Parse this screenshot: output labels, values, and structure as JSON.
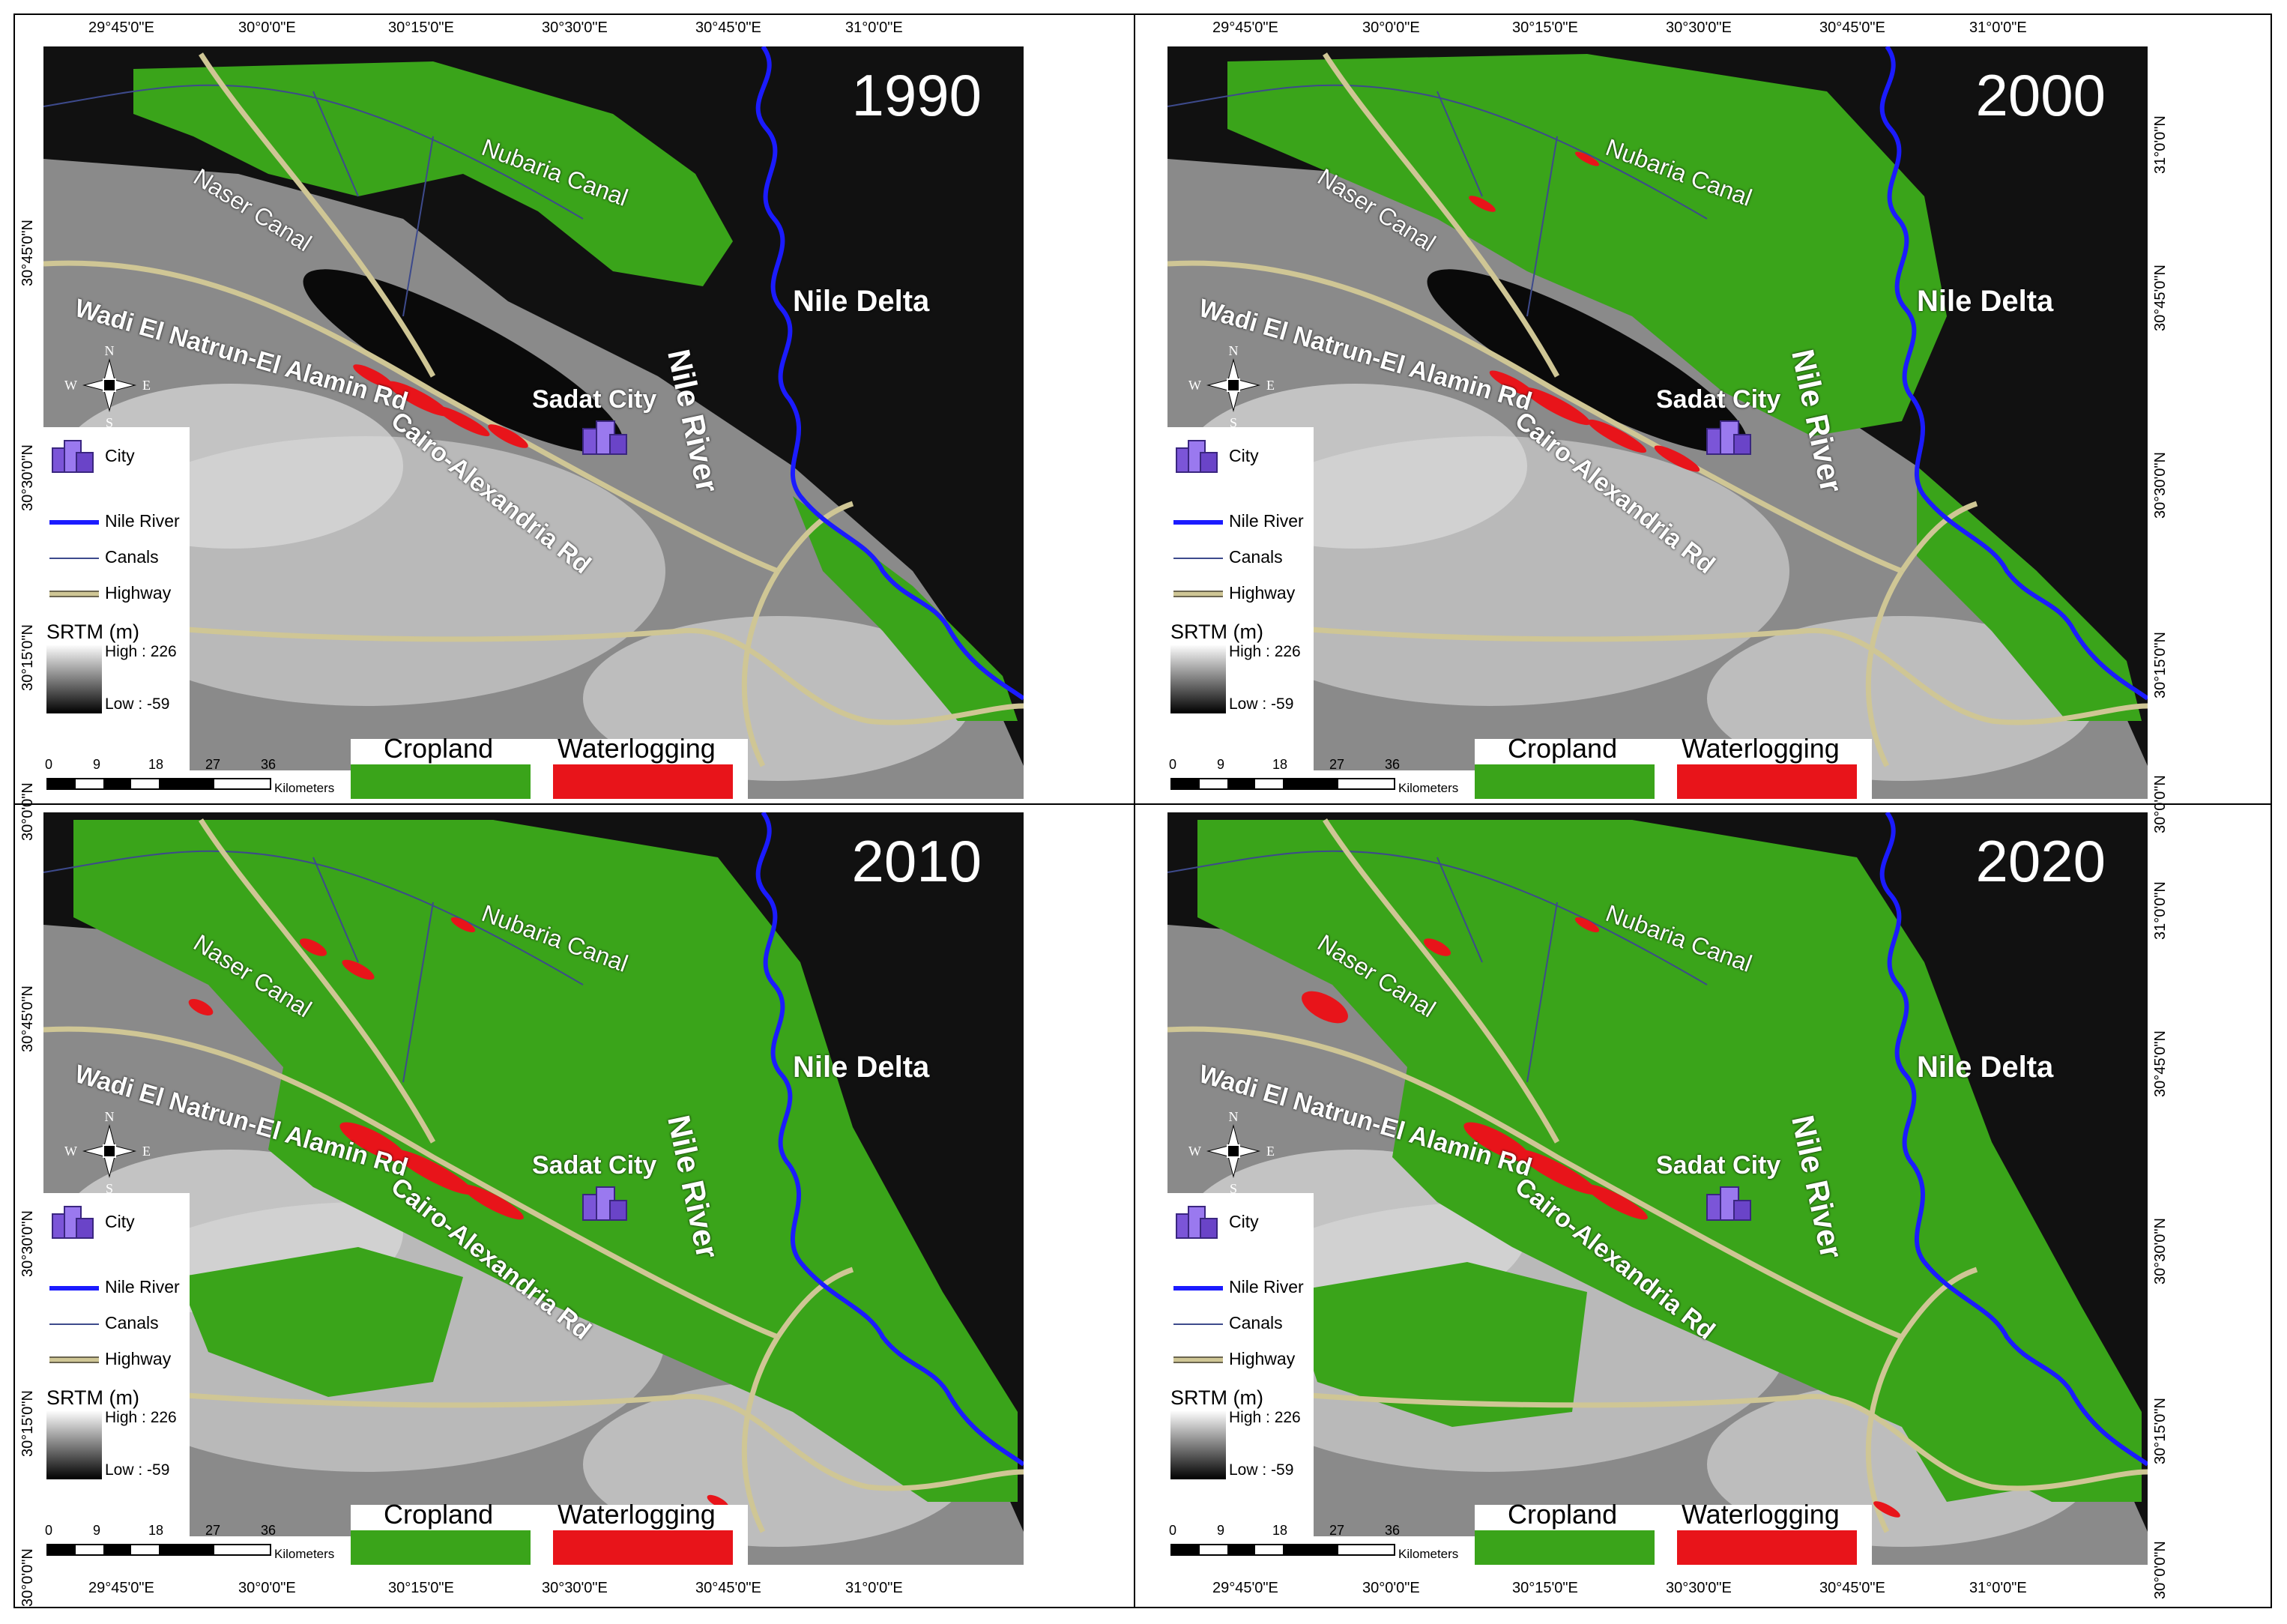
{
  "figure": {
    "panels": [
      {
        "year": "1990"
      },
      {
        "year": "2000"
      },
      {
        "year": "2010"
      },
      {
        "year": "2020"
      }
    ],
    "map_labels": {
      "nile_delta": "Nile Delta",
      "nile_river": "Nile River",
      "sadat_city": "Sadat City",
      "nubaria_canal": "Nubaria Canal",
      "naser_canal": "Naser Canal",
      "wadi_rd": "Wadi El Natrun-El Alamin Rd",
      "cairo_rd": "Cairo-Alexandria Rd"
    },
    "legend": {
      "city": "City",
      "nile_river": "Nile River",
      "canals": "Canals",
      "highway": "Highway",
      "srtm_title": "SRTM (m)",
      "srtm_high": "High : 226",
      "srtm_low": "Low : -59",
      "compass": {
        "n": "N",
        "s": "S",
        "e": "E",
        "w": "W"
      }
    },
    "scale": {
      "ticks": [
        "0",
        "9",
        "18",
        "27",
        "36"
      ],
      "unit": "Kilometers"
    },
    "classes": {
      "cropland": {
        "label": "Cropland",
        "color": "#3aa41a"
      },
      "waterlogging": {
        "label": "Waterlogging",
        "color": "#e8141a"
      }
    },
    "colors": {
      "river": "#1b1bff",
      "canal": "#3d4a8c",
      "highway": "#cfc695",
      "background": "#0e0e0e"
    },
    "axes": {
      "longitude": [
        "29°45'0\"E",
        "30°0'0\"E",
        "30°15'0\"E",
        "30°30'0\"E",
        "30°45'0\"E",
        "31°0'0\"E"
      ],
      "latitude_left": [
        "30°45'0\"N",
        "30°30'0\"N",
        "30°15'0\"N",
        "30°0'0\"N"
      ],
      "latitude_right": [
        "31°0'0\"N",
        "30°45'0\"N",
        "30°30'0\"N",
        "30°15'0\"N",
        "30°0'0\"N"
      ]
    }
  }
}
